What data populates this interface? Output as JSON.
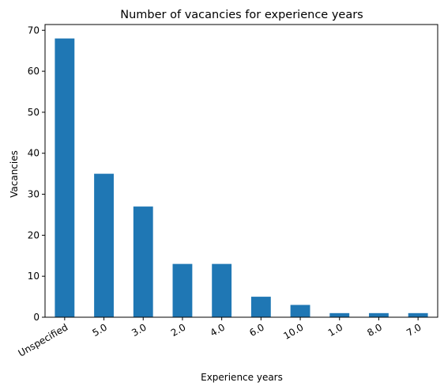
{
  "chart_data": {
    "type": "bar",
    "title": "Number of vacancies for experience years",
    "xlabel": "Experience years",
    "ylabel": "Vacancies",
    "categories": [
      "Unspecified",
      "5.0",
      "3.0",
      "2.0",
      "4.0",
      "6.0",
      "10.0",
      "1.0",
      "8.0",
      "7.0"
    ],
    "values": [
      68,
      35,
      27,
      13,
      13,
      5,
      3,
      1,
      1,
      1
    ],
    "ylim": [
      0,
      71.4
    ],
    "yticks": [
      "0",
      "10",
      "20",
      "30",
      "40",
      "50",
      "60",
      "70"
    ],
    "grid": false,
    "legend": "none",
    "bar_color": "#1f77b4"
  }
}
